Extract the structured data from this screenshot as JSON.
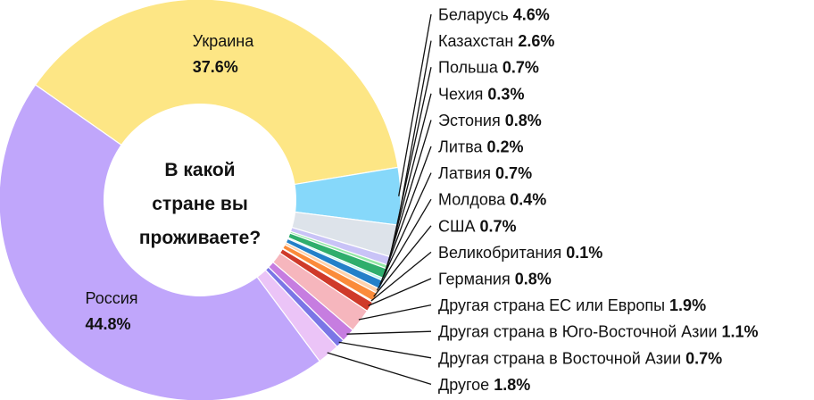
{
  "chart_data": {
    "type": "pie",
    "title": "В какой стране вы проживаете?",
    "title_lines": [
      "В какой",
      "стране вы",
      "проживаете?"
    ],
    "unit": "%",
    "slices": [
      {
        "name": "Украина",
        "value": 37.6,
        "label": "37.6%",
        "color": "#fde685"
      },
      {
        "name": "Беларусь",
        "value": 4.6,
        "label": "4.6%",
        "color": "#86d8fa"
      },
      {
        "name": "Казахстан",
        "value": 2.6,
        "label": "2.6%",
        "color": "#dde3ea"
      },
      {
        "name": "Польша",
        "value": 0.7,
        "label": "0.7%",
        "color": "#c9c3f7"
      },
      {
        "name": "Чехия",
        "value": 0.3,
        "label": "0.3%",
        "color": "#93e8a6"
      },
      {
        "name": "Эстония",
        "value": 0.8,
        "label": "0.8%",
        "color": "#2fae6c"
      },
      {
        "name": "Литва",
        "value": 0.2,
        "label": "0.2%",
        "color": "#b6f5ec"
      },
      {
        "name": "Латвия",
        "value": 0.7,
        "label": "0.7%",
        "color": "#2380c9"
      },
      {
        "name": "Молдова",
        "value": 0.4,
        "label": "0.4%",
        "color": "#ffd2ad"
      },
      {
        "name": "США",
        "value": 0.7,
        "label": "0.7%",
        "color": "#fb8b3a"
      },
      {
        "name": "Великобритания",
        "value": 0.1,
        "label": "0.1%",
        "color": "#f5c542"
      },
      {
        "name": "Германия",
        "value": 0.8,
        "label": "0.8%",
        "color": "#cf3a2a"
      },
      {
        "name": "Другая страна ЕС или Европы",
        "value": 1.9,
        "label": "1.9%",
        "color": "#f6b6bd"
      },
      {
        "name": "Другая страна в Юго-Восточной Азии",
        "value": 1.1,
        "label": "1.1%",
        "color": "#c67de0"
      },
      {
        "name": "Другая страна в Восточной Азии",
        "value": 0.7,
        "label": "0.7%",
        "color": "#7b76e6"
      },
      {
        "name": "Другое",
        "value": 1.8,
        "label": "1.8%",
        "color": "#ebc4f7"
      },
      {
        "name": "Россия",
        "value": 44.8,
        "label": "44.8%",
        "color": "#c0a6fb"
      }
    ],
    "legend": "right, leader lines",
    "inner_labels": [
      "Украина",
      "Россия"
    ]
  }
}
